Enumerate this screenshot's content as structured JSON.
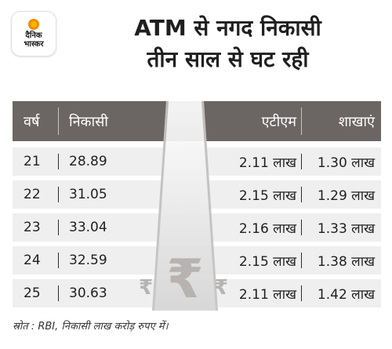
{
  "logo": {
    "line1": "दैनिक",
    "line2": "भास्कर",
    "accent": "#f28a00"
  },
  "headline": {
    "line1": "ATM से नगद निकासी",
    "line2": "तीन साल से घट रही"
  },
  "table": {
    "header_color": "#6b6564",
    "row_color": "#efefef",
    "columns": [
      "वर्ष",
      "निकासी",
      "एटीएम",
      "शाखाएं"
    ],
    "rows": [
      {
        "year": "21",
        "withdrawal": "28.89",
        "atm": "2.11 लाख",
        "branches": "1.30 लाख"
      },
      {
        "year": "22",
        "withdrawal": "31.05",
        "atm": "2.15 लाख",
        "branches": "1.29 लाख"
      },
      {
        "year": "23",
        "withdrawal": "33.04",
        "atm": "2.16 लाख",
        "branches": "1.33 लाख"
      },
      {
        "year": "24",
        "withdrawal": "32.59",
        "atm": "2.15 लाख",
        "branches": "1.38 लाख"
      },
      {
        "year": "25",
        "withdrawal": "30.63",
        "atm": "2.11 लाख",
        "branches": "1.42 लाख"
      }
    ]
  },
  "graphic": {
    "icon": "rupee-symbol-icon",
    "symbol": "₹"
  },
  "source": "स्रोत : RBI, निकासी लाख करोड़ रुपए में।"
}
